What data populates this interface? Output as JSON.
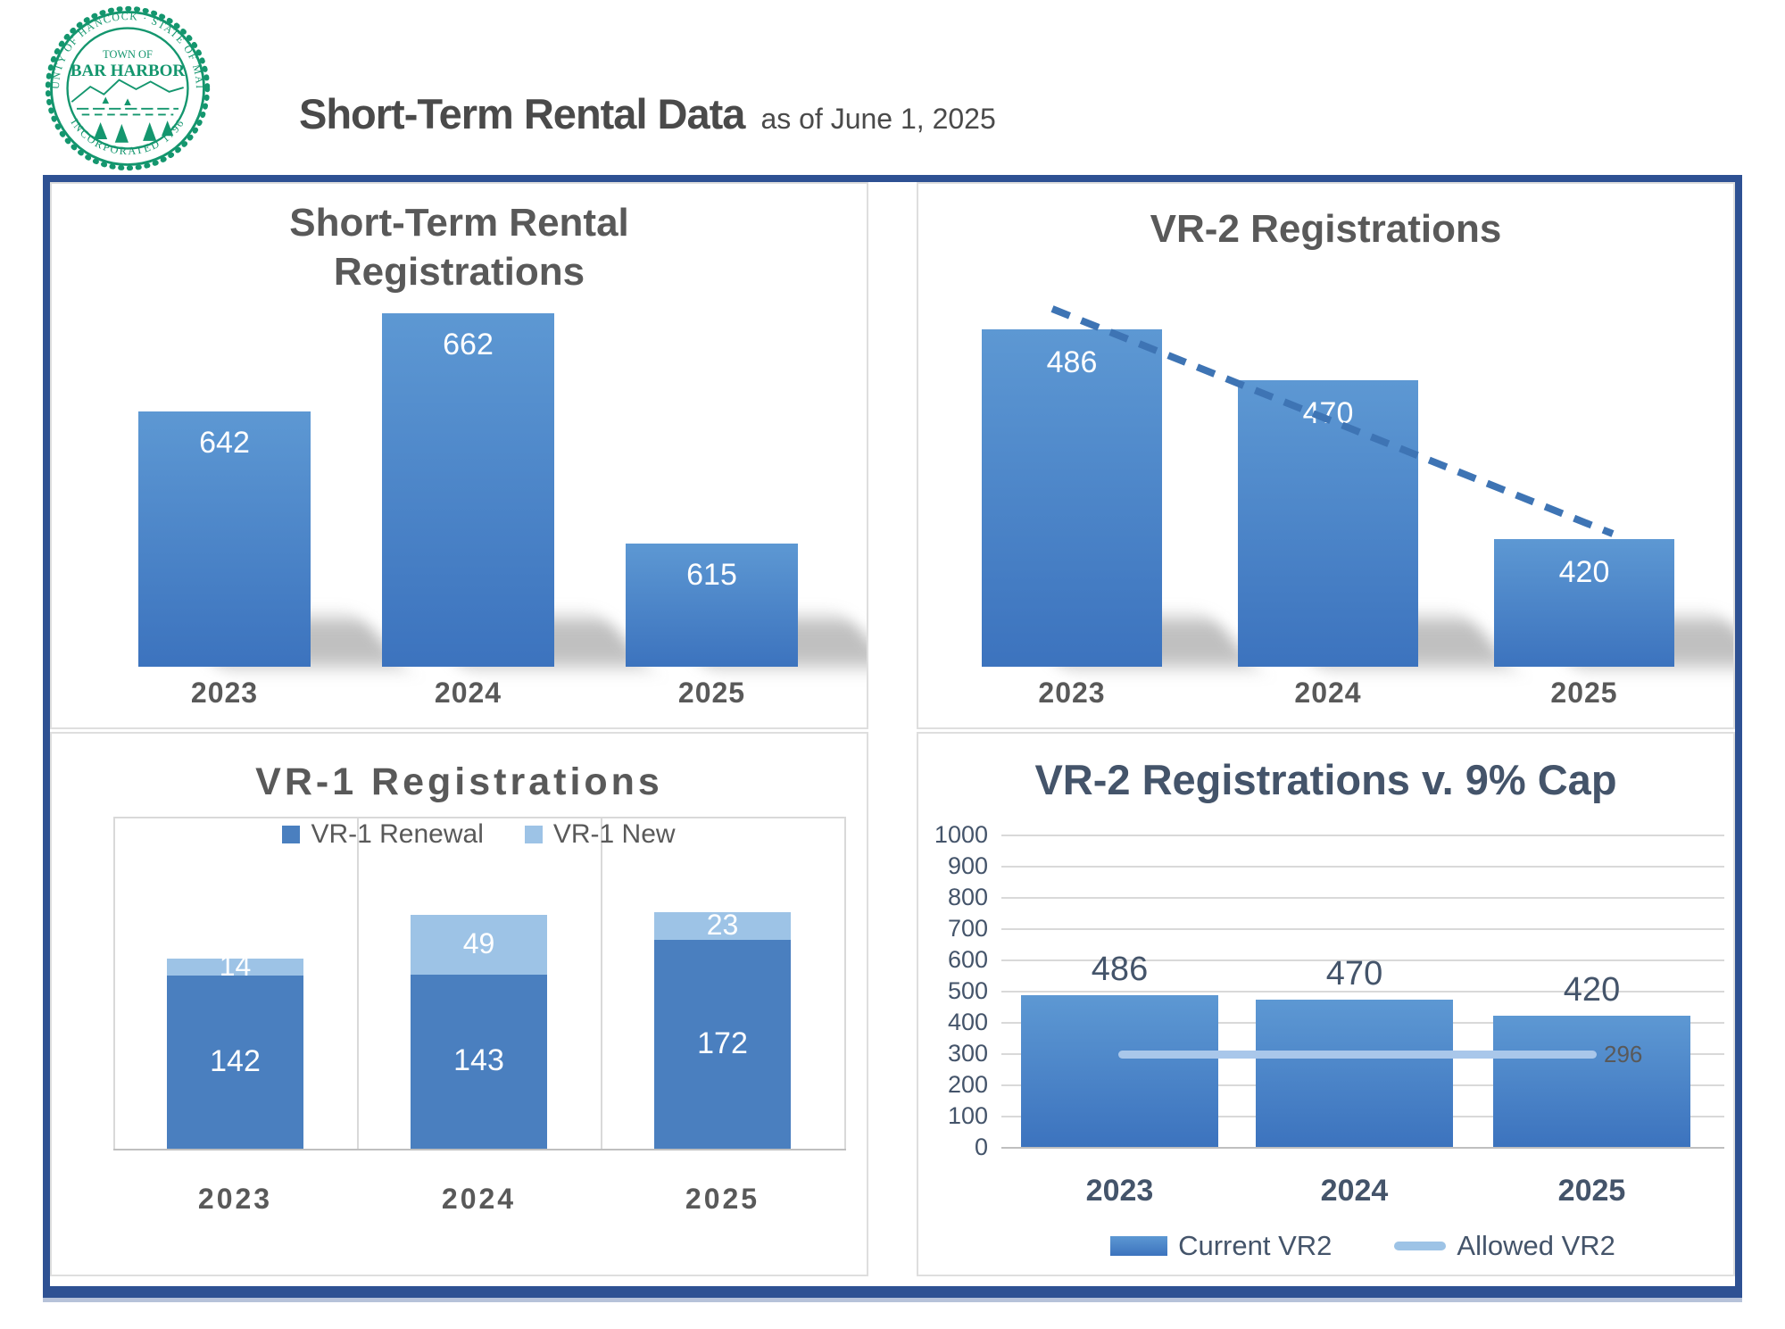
{
  "header": {
    "title": "Short-Term Rental Data",
    "subtitle": "as of June 1, 2025"
  },
  "logo": {
    "arc_top": "COUNTY OF HANCOCK  ·  STATE OF MAINE",
    "center_top": "TOWN OF",
    "center_main": "BAR HARBOR",
    "arc_bottom": "INCORPORATED 1796"
  },
  "colors": {
    "frame_navy": "#2e5193",
    "title_gray": "#595959",
    "slate_navy": "#44546a",
    "bar_gradient_top": "#5d98d3",
    "bar_gradient_bottom": "#3c73be",
    "renewal_blue": "#4a7fbf",
    "light_blue": "#9dc3e6",
    "allowed_line_blue": "#a9c7ea",
    "trendline_blue": "#3e74b4",
    "gridline_gray": "#d9d9d9",
    "seal_green": "#14966e"
  },
  "chart_data": [
    {
      "type": "bar",
      "title": "Short-Term Rental\nRegistrations",
      "categories": [
        "2023",
        "2024",
        "2025"
      ],
      "values": [
        642,
        662,
        615
      ],
      "ylim": [
        590,
        670
      ],
      "grid": false,
      "data_labels_inside": true
    },
    {
      "type": "bar",
      "title": "VR-2 Registrations",
      "categories": [
        "2023",
        "2024",
        "2025"
      ],
      "values": [
        486,
        470,
        420
      ],
      "ylim": [
        380,
        510
      ],
      "grid": false,
      "data_labels_inside": true,
      "trendline": "downward dashed"
    },
    {
      "type": "bar",
      "stacked": true,
      "title": "VR-1 Registrations",
      "categories": [
        "2023",
        "2024",
        "2025"
      ],
      "series": [
        {
          "name": "VR-1 Renewal",
          "values": [
            142,
            143,
            172
          ]
        },
        {
          "name": "VR-1 New",
          "values": [
            14,
            49,
            23
          ]
        }
      ],
      "ylim": [
        0,
        273
      ],
      "grid": true,
      "legend_position": "top"
    },
    {
      "type": "bar",
      "title": "VR-2 Registrations v. 9% Cap",
      "categories": [
        "2023",
        "2024",
        "2025"
      ],
      "series": [
        {
          "name": "Current VR2",
          "values": [
            486,
            470,
            420
          ]
        },
        {
          "name": "Allowed VR2",
          "values": [
            296,
            296,
            296
          ]
        }
      ],
      "line_value": 296,
      "line_label": "296",
      "ylim": [
        0,
        1000
      ],
      "yticks": [
        0,
        100,
        200,
        300,
        400,
        500,
        600,
        700,
        800,
        900,
        1000
      ],
      "grid": true,
      "legend_position": "bottom"
    }
  ]
}
